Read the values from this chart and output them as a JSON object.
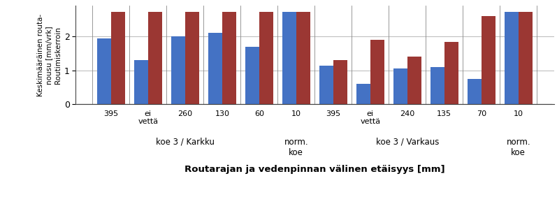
{
  "groups": [
    {
      "label": "395",
      "blue": 1.95,
      "red": 2.72
    },
    {
      "label": "ei\nvettä",
      "blue": 1.3,
      "red": 2.72
    },
    {
      "label": "260",
      "blue": 2.0,
      "red": 2.72
    },
    {
      "label": "130",
      "blue": 2.1,
      "red": 2.72
    },
    {
      "label": "60",
      "blue": 1.7,
      "red": 2.72
    },
    {
      "label": "10",
      "blue": 2.72,
      "red": 2.72
    },
    {
      "label": "395",
      "blue": 1.15,
      "red": 1.3
    },
    {
      "label": "ei\nvettä",
      "blue": 0.6,
      "red": 1.9
    },
    {
      "label": "240",
      "blue": 1.05,
      "red": 1.4
    },
    {
      "label": "135",
      "blue": 1.1,
      "red": 1.85
    },
    {
      "label": "70",
      "blue": 0.75,
      "red": 2.6
    },
    {
      "label": "10",
      "blue": 2.72,
      "red": 2.72
    }
  ],
  "group_annotations": [
    {
      "start": 0,
      "end": 4,
      "label": "koe 3 / Karkku"
    },
    {
      "start": 5,
      "end": 5,
      "label": "norm.\nkoe"
    },
    {
      "start": 6,
      "end": 10,
      "label": "koe 3 / Varkaus"
    },
    {
      "start": 11,
      "end": 11,
      "label": "norm.\nkoe"
    }
  ],
  "vline_positions": [
    -0.5,
    0.5,
    1.5,
    2.5,
    3.5,
    4.5,
    5.5,
    6.5,
    7.5,
    8.5,
    9.5,
    10.5,
    11.5
  ],
  "ylabel_line1": "Keskimääräinen routa-",
  "ylabel_line2": "nousu [mm/vrk]",
  "ylabel_line3": "Routimiskerroin",
  "xlabel": "Routarajan ja vedenpinnan välinen etäisyys [mm]",
  "ylim": [
    0.0,
    2.9
  ],
  "yticks": [
    0.0,
    1.0,
    2.0
  ],
  "blue_color": "#4472C4",
  "red_color": "#9B3733",
  "bar_width": 0.38,
  "grid_color": "#C0C0C0",
  "vline_color": "#888888",
  "spine_color": "#444444"
}
